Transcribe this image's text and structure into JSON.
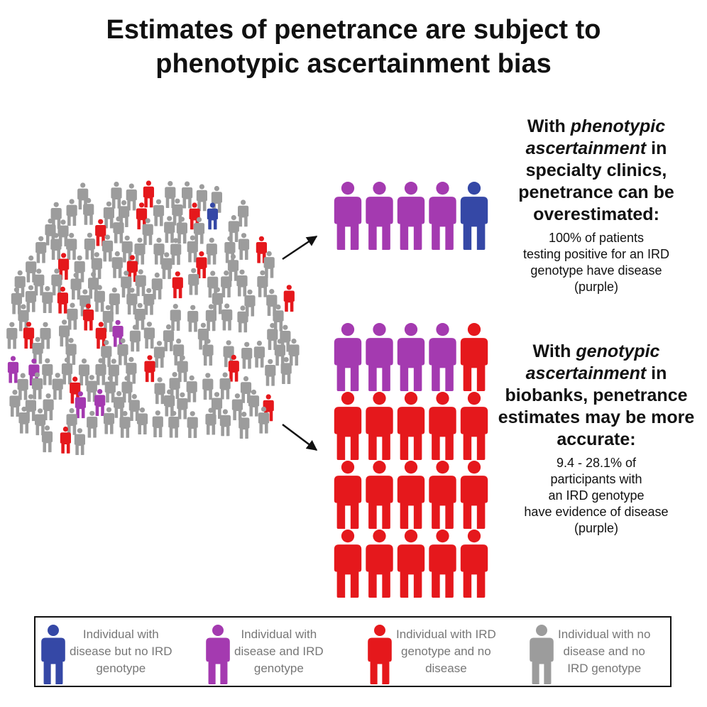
{
  "title": {
    "line1": "Estimates of penetrance are subject to",
    "line2": "phenotypic ascertainment bias"
  },
  "colors": {
    "blue": "#3548a6",
    "purple": "#a43ab0",
    "red": "#e5181c",
    "gray": "#9c9c9c",
    "arrow": "#111111"
  },
  "crowd": {
    "counts": {
      "red": 19,
      "purple": 5,
      "blue": 1,
      "gray": 145
    }
  },
  "phenotypic": {
    "head_pre": "With ",
    "head_italic": "phenotypic ascertainment",
    "head_post": " in specialty clinics, penetrance can be overestimated:",
    "body_lines": [
      "100% of patients",
      "testing positive for an IRD",
      "genotype have disease",
      "(purple)"
    ],
    "figures": [
      "purple",
      "purple",
      "purple",
      "purple",
      "blue"
    ]
  },
  "genotypic": {
    "head_pre": "With ",
    "head_italic": "genotypic ascertainment",
    "head_post": " in biobanks, penetrance estimates may be more accurate:",
    "body_lines": [
      "9.4 - 28.1% of",
      "participants with",
      "an IRD genotype",
      "have evidence of disease",
      "(purple)"
    ],
    "figures": [
      "purple",
      "purple",
      "purple",
      "purple",
      "red",
      "red",
      "red",
      "red",
      "red",
      "red",
      "red",
      "red",
      "red",
      "red",
      "red",
      "red",
      "red",
      "red",
      "red",
      "red"
    ]
  },
  "legend": [
    {
      "key": "blue",
      "lines": [
        "Individual with",
        "disease but no IRD",
        "genotype"
      ]
    },
    {
      "key": "purple",
      "lines": [
        "Individual with",
        "disease and IRD",
        "genotype"
      ]
    },
    {
      "key": "red",
      "lines": [
        "Individual with IRD",
        "genotype and no",
        "disease"
      ]
    },
    {
      "key": "gray",
      "lines": [
        "Individual with no",
        "disease and no",
        "IRD genotype"
      ]
    }
  ]
}
